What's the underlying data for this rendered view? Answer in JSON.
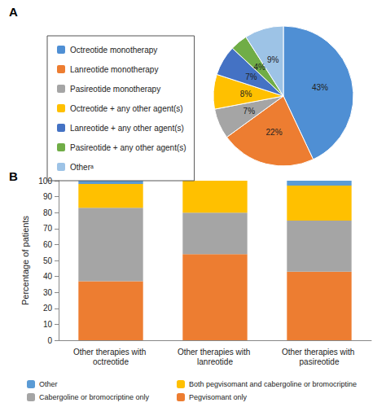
{
  "chart_data": [
    {
      "type": "pie",
      "title": "A",
      "legend": "left",
      "data_labels": true,
      "categories": [
        "Octreotide monotherapy",
        "Lanreotide monotherapy",
        "Pasireotide monotherapy",
        "Octreotide + any other agent(s)",
        "Lanreotide + any other agent(s)",
        "Pasireotide + any other agent(s)",
        "Otherᵃ"
      ],
      "values": [
        43,
        22,
        7,
        8,
        7,
        4,
        9
      ],
      "value_labels": [
        "43%",
        "22%",
        "7%",
        "8%",
        "7%",
        "4%",
        "9%"
      ],
      "colors": [
        "#4f8fd4",
        "#ed7d31",
        "#a5a5a5",
        "#ffc000",
        "#4472c4",
        "#70ad47",
        "#9dc3e6"
      ]
    },
    {
      "type": "bar",
      "title": "B",
      "stacked": true,
      "grid": false,
      "legend": "bottom",
      "ylabel": "Percentage of patients",
      "categories": [
        "Other therapies with octreotide",
        "Other therapies with lanreotide",
        "Other therapies with pasireotide"
      ],
      "ylim": [
        0,
        100
      ],
      "yticks": [
        0,
        10,
        20,
        30,
        40,
        50,
        60,
        70,
        80,
        90,
        100
      ],
      "series": [
        {
          "name": "Pegvisomant only",
          "color": "#ed7d31",
          "values": [
            37,
            54,
            43
          ]
        },
        {
          "name": "Cabergoline or bromocriptine only",
          "color": "#a5a5a5",
          "values": [
            46,
            26,
            32
          ]
        },
        {
          "name": "Both pegvisomant and cabergoline or bromocriptine",
          "color": "#ffc000",
          "values": [
            15,
            20,
            22
          ]
        },
        {
          "name": "Other",
          "color": "#5b9bd5",
          "values": [
            2,
            0,
            3
          ]
        }
      ]
    }
  ]
}
